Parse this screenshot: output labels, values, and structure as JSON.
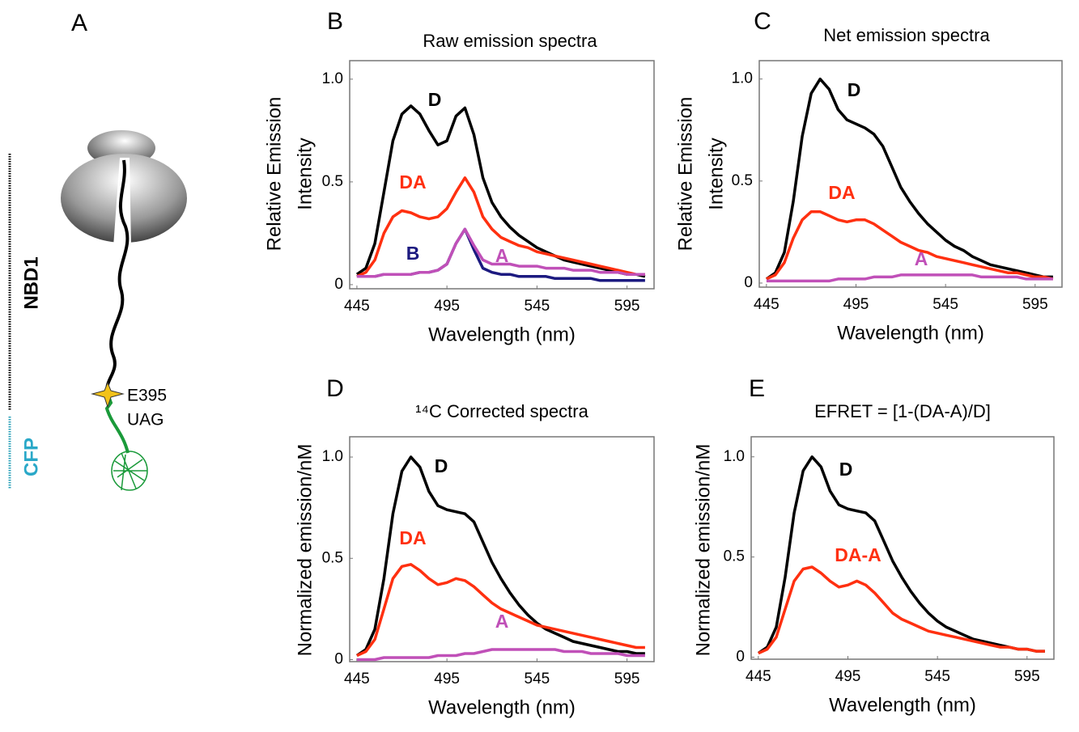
{
  "panel_a": {
    "label": "A",
    "nbd1": "NBD1",
    "cfp": "CFP",
    "site": "E395",
    "codon": "UAG"
  },
  "chart_data": [
    {
      "type": "line",
      "panel": "B",
      "title": "Raw emission spectra",
      "xlabel": "Wavelength (nm)",
      "ylabel": [
        "Relative Emission",
        "Intensity"
      ],
      "xlim": [
        441,
        610
      ],
      "ylim": [
        -0.02,
        1.09
      ],
      "xticks": [
        445,
        495,
        545,
        595
      ],
      "yticks": [
        0,
        0.5,
        {
          "value": 1,
          "label": "1.0"
        }
      ],
      "grid": false,
      "x": [
        445,
        450,
        455,
        460,
        465,
        470,
        475,
        480,
        485,
        490,
        495,
        500,
        505,
        510,
        515,
        520,
        525,
        530,
        535,
        540,
        545,
        550,
        555,
        560,
        565,
        570,
        575,
        580,
        585,
        590,
        595,
        600,
        605
      ],
      "series": [
        {
          "name": "D",
          "color": "#000000",
          "values": [
            0.05,
            0.08,
            0.2,
            0.45,
            0.7,
            0.83,
            0.87,
            0.83,
            0.75,
            0.68,
            0.7,
            0.82,
            0.86,
            0.73,
            0.52,
            0.4,
            0.33,
            0.28,
            0.24,
            0.21,
            0.18,
            0.16,
            0.14,
            0.12,
            0.11,
            0.1,
            0.09,
            0.08,
            0.07,
            0.06,
            0.05,
            0.05,
            0.04
          ]
        },
        {
          "name": "DA",
          "color": "#ff3010",
          "values": [
            0.04,
            0.06,
            0.12,
            0.25,
            0.33,
            0.36,
            0.35,
            0.33,
            0.32,
            0.33,
            0.37,
            0.45,
            0.52,
            0.45,
            0.33,
            0.27,
            0.23,
            0.21,
            0.19,
            0.18,
            0.16,
            0.15,
            0.14,
            0.13,
            0.12,
            0.11,
            0.1,
            0.09,
            0.08,
            0.07,
            0.06,
            0.05,
            0.05
          ]
        },
        {
          "name": "B",
          "color": "#1c1a80",
          "values": [
            0.04,
            0.04,
            0.04,
            0.05,
            0.05,
            0.05,
            0.05,
            0.06,
            0.06,
            0.07,
            0.1,
            0.2,
            0.27,
            0.17,
            0.08,
            0.06,
            0.05,
            0.05,
            0.04,
            0.04,
            0.04,
            0.04,
            0.03,
            0.03,
            0.03,
            0.03,
            0.03,
            0.02,
            0.02,
            0.02,
            0.02,
            0.02,
            0.02
          ]
        },
        {
          "name": "A",
          "color": "#c050b8",
          "values": [
            0.04,
            0.04,
            0.04,
            0.05,
            0.05,
            0.05,
            0.05,
            0.06,
            0.06,
            0.07,
            0.1,
            0.2,
            0.27,
            0.19,
            0.12,
            0.1,
            0.1,
            0.1,
            0.09,
            0.09,
            0.09,
            0.08,
            0.08,
            0.08,
            0.07,
            0.07,
            0.07,
            0.06,
            0.06,
            0.06,
            0.05,
            0.05,
            0.05
          ]
        }
      ]
    },
    {
      "type": "line",
      "panel": "C",
      "title": "Net emission spectra",
      "xlabel": "Wavelength (nm)",
      "ylabel": [
        "Relative Emission",
        "Intensity"
      ],
      "xlim": [
        441,
        610
      ],
      "ylim": [
        -0.02,
        1.09
      ],
      "xticks": [
        445,
        495,
        545,
        595
      ],
      "yticks": [
        0,
        0.5,
        {
          "value": 1,
          "label": "1.0"
        }
      ],
      "grid": false,
      "x": [
        445,
        450,
        455,
        460,
        465,
        470,
        475,
        480,
        485,
        490,
        495,
        500,
        505,
        510,
        515,
        520,
        525,
        530,
        535,
        540,
        545,
        550,
        555,
        560,
        565,
        570,
        575,
        580,
        585,
        590,
        595,
        600,
        605
      ],
      "series": [
        {
          "name": "D",
          "color": "#000000",
          "values": [
            0.02,
            0.05,
            0.15,
            0.4,
            0.72,
            0.93,
            1.0,
            0.95,
            0.85,
            0.8,
            0.78,
            0.76,
            0.73,
            0.67,
            0.57,
            0.47,
            0.4,
            0.34,
            0.29,
            0.25,
            0.21,
            0.18,
            0.16,
            0.13,
            0.11,
            0.09,
            0.08,
            0.07,
            0.06,
            0.05,
            0.04,
            0.03,
            0.03
          ]
        },
        {
          "name": "DA",
          "color": "#ff3010",
          "values": [
            0.02,
            0.04,
            0.1,
            0.22,
            0.31,
            0.35,
            0.35,
            0.33,
            0.31,
            0.3,
            0.31,
            0.31,
            0.29,
            0.26,
            0.23,
            0.2,
            0.18,
            0.16,
            0.15,
            0.13,
            0.12,
            0.11,
            0.1,
            0.09,
            0.08,
            0.07,
            0.06,
            0.05,
            0.05,
            0.04,
            0.03,
            0.03,
            0.02
          ]
        },
        {
          "name": "A",
          "color": "#c050b8",
          "values": [
            0.01,
            0.01,
            0.01,
            0.01,
            0.01,
            0.01,
            0.01,
            0.01,
            0.02,
            0.02,
            0.02,
            0.02,
            0.03,
            0.03,
            0.03,
            0.04,
            0.04,
            0.04,
            0.04,
            0.04,
            0.04,
            0.04,
            0.04,
            0.04,
            0.03,
            0.03,
            0.03,
            0.03,
            0.03,
            0.02,
            0.02,
            0.02,
            0.02
          ]
        }
      ]
    },
    {
      "type": "line",
      "panel": "D",
      "title": "¹⁴C Corrected spectra",
      "xlabel": "Wavelength (nm)",
      "ylabel": [
        "Normalized emission/nM"
      ],
      "xlim": [
        441,
        610
      ],
      "ylim": [
        -0.01,
        1.1
      ],
      "xticks": [
        445,
        495,
        545,
        595
      ],
      "yticks": [
        0,
        0.5,
        {
          "value": 1,
          "label": "1.0"
        }
      ],
      "grid": false,
      "x": [
        445,
        450,
        455,
        460,
        465,
        470,
        475,
        480,
        485,
        490,
        495,
        500,
        505,
        510,
        515,
        520,
        525,
        530,
        535,
        540,
        545,
        550,
        555,
        560,
        565,
        570,
        575,
        580,
        585,
        590,
        595,
        600,
        605
      ],
      "series": [
        {
          "name": "D",
          "color": "#000000",
          "values": [
            0.02,
            0.05,
            0.15,
            0.4,
            0.72,
            0.93,
            1.0,
            0.95,
            0.83,
            0.76,
            0.74,
            0.73,
            0.72,
            0.68,
            0.58,
            0.48,
            0.4,
            0.33,
            0.27,
            0.22,
            0.18,
            0.15,
            0.13,
            0.11,
            0.09,
            0.08,
            0.07,
            0.06,
            0.05,
            0.04,
            0.04,
            0.03,
            0.03
          ]
        },
        {
          "name": "DA",
          "color": "#ff3010",
          "values": [
            0.02,
            0.04,
            0.1,
            0.25,
            0.4,
            0.46,
            0.47,
            0.44,
            0.4,
            0.37,
            0.38,
            0.4,
            0.39,
            0.36,
            0.32,
            0.28,
            0.25,
            0.23,
            0.21,
            0.19,
            0.17,
            0.16,
            0.15,
            0.14,
            0.13,
            0.12,
            0.11,
            0.1,
            0.09,
            0.08,
            0.07,
            0.06,
            0.06
          ]
        },
        {
          "name": "A",
          "color": "#c050b8",
          "values": [
            0,
            0,
            0,
            0.01,
            0.01,
            0.01,
            0.01,
            0.01,
            0.01,
            0.02,
            0.02,
            0.02,
            0.03,
            0.03,
            0.04,
            0.05,
            0.05,
            0.05,
            0.05,
            0.05,
            0.05,
            0.05,
            0.05,
            0.04,
            0.04,
            0.04,
            0.03,
            0.03,
            0.03,
            0.03,
            0.02,
            0.02,
            0.02
          ]
        }
      ]
    },
    {
      "type": "line",
      "panel": "E",
      "title": "EFRET = [1-(DA-A)/D]",
      "xlabel": "Wavelength (nm)",
      "ylabel": [
        "Normalized emission/nM"
      ],
      "xlim": [
        441,
        610
      ],
      "ylim": [
        -0.01,
        1.1
      ],
      "xticks": [
        445,
        495,
        545,
        595
      ],
      "yticks": [
        0,
        0.5,
        {
          "value": 1,
          "label": "1.0"
        }
      ],
      "grid": false,
      "x": [
        445,
        450,
        455,
        460,
        465,
        470,
        475,
        480,
        485,
        490,
        495,
        500,
        505,
        510,
        515,
        520,
        525,
        530,
        535,
        540,
        545,
        550,
        555,
        560,
        565,
        570,
        575,
        580,
        585,
        590,
        595,
        600,
        605
      ],
      "series": [
        {
          "name": "D",
          "color": "#000000",
          "values": [
            0.02,
            0.05,
            0.15,
            0.4,
            0.72,
            0.93,
            1.0,
            0.95,
            0.83,
            0.76,
            0.74,
            0.73,
            0.72,
            0.68,
            0.58,
            0.48,
            0.4,
            0.33,
            0.27,
            0.22,
            0.18,
            0.15,
            0.13,
            0.11,
            0.09,
            0.08,
            0.07,
            0.06,
            0.05,
            0.04,
            0.04,
            0.03,
            0.03
          ]
        },
        {
          "name": "DA-A",
          "color": "#ff3010",
          "values": [
            0.02,
            0.04,
            0.1,
            0.24,
            0.38,
            0.44,
            0.45,
            0.42,
            0.38,
            0.35,
            0.36,
            0.38,
            0.36,
            0.32,
            0.27,
            0.22,
            0.19,
            0.17,
            0.15,
            0.13,
            0.12,
            0.11,
            0.1,
            0.09,
            0.08,
            0.07,
            0.06,
            0.05,
            0.05,
            0.04,
            0.04,
            0.03,
            0.03
          ]
        }
      ]
    }
  ]
}
